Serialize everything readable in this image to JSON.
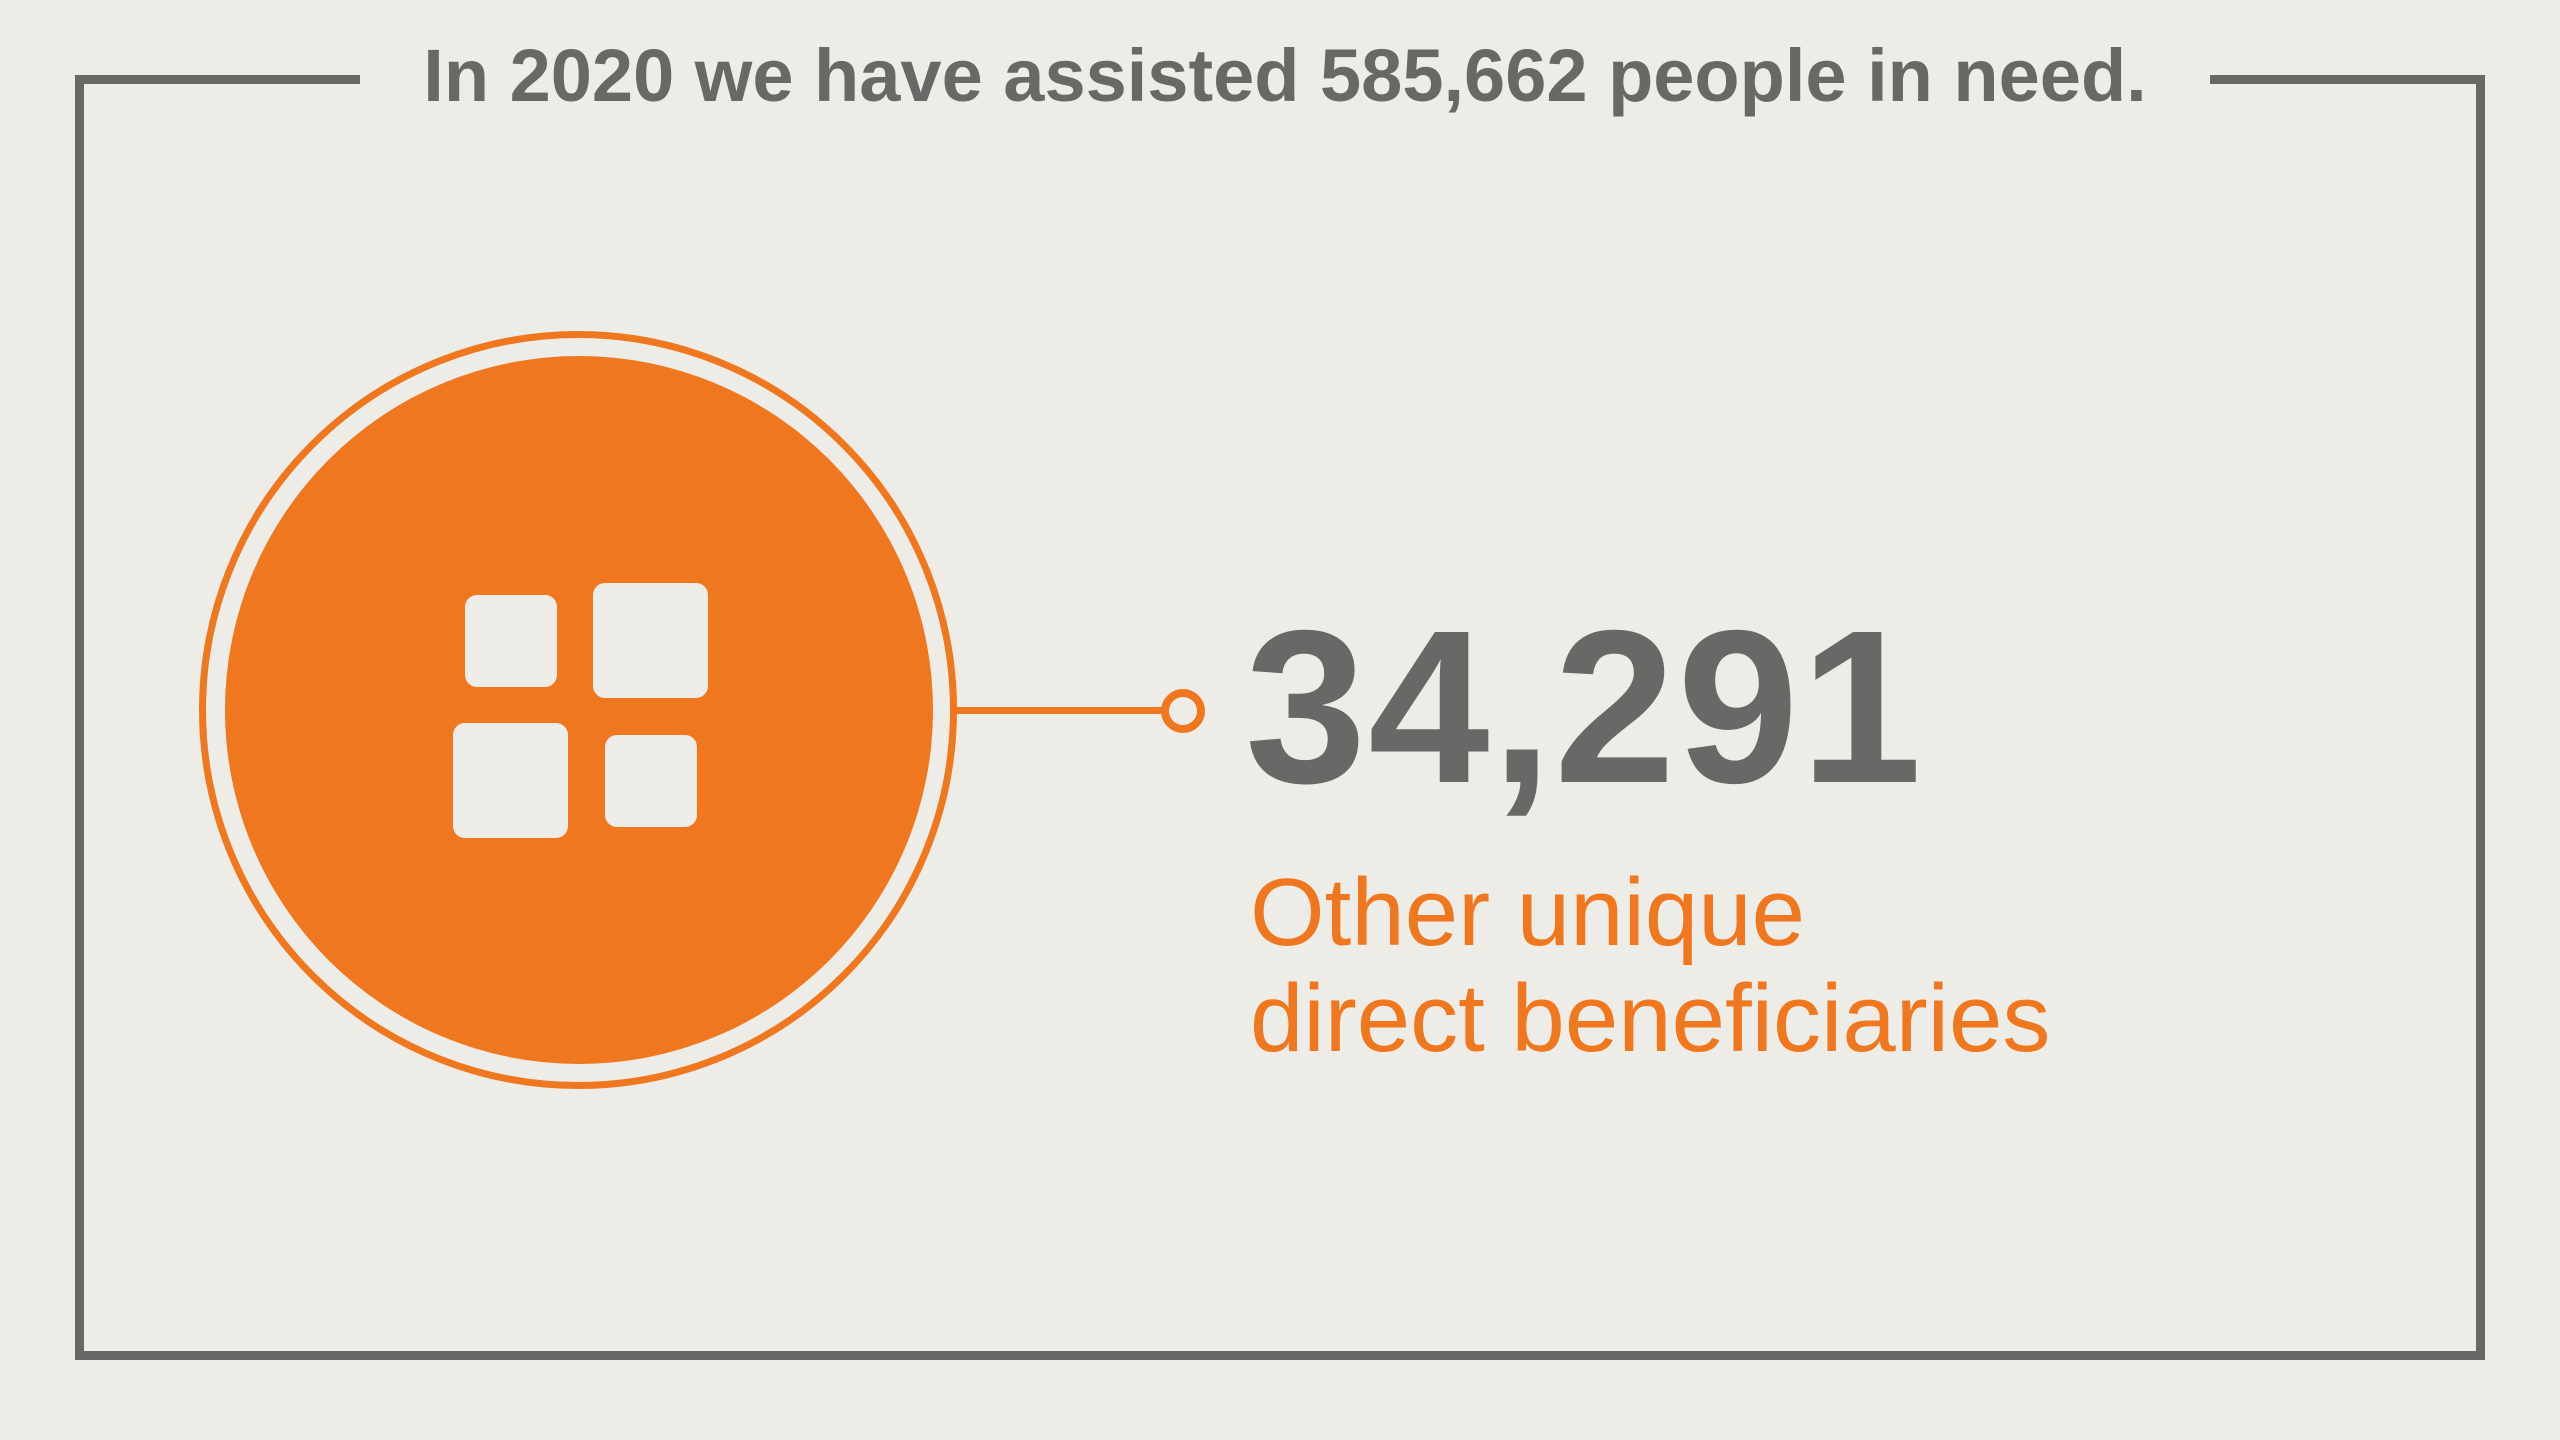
{
  "headline": "In 2020 we have assisted 585,662 people in need.",
  "stat": {
    "value": "34,291",
    "label_line1": "Other unique",
    "label_line2": "direct beneficiaries"
  },
  "icon": "four-squares-icon",
  "colors": {
    "background": "#edece6",
    "accent": "#ee771f",
    "text_gray": "#676967"
  }
}
